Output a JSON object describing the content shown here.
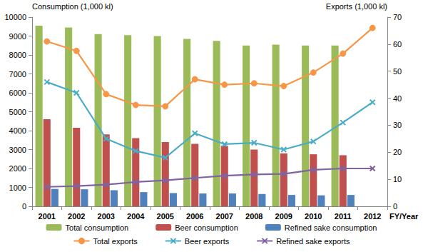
{
  "chart_data": {
    "type": "bar",
    "x_label": "FY/Year",
    "y_label": "Consumption (1,000 kl)",
    "y2_label": "Exports (1,000 kl)",
    "categories": [
      "2001",
      "2002",
      "2003",
      "2004",
      "2005",
      "2006",
      "2007",
      "2008",
      "2009",
      "2010",
      "2011",
      "2012"
    ],
    "ylim": [
      0,
      10000
    ],
    "yticks": [
      0,
      1000,
      2000,
      3000,
      4000,
      5000,
      6000,
      7000,
      8000,
      9000,
      10000
    ],
    "y2lim": [
      0,
      70
    ],
    "y2ticks": [
      0,
      10,
      20,
      30,
      40,
      50,
      60,
      70
    ],
    "grid": false,
    "legend": "bottom",
    "series": [
      {
        "name": "Total consumption",
        "type": "bar",
        "color": "#9bbb59",
        "values": [
          9550,
          9450,
          9100,
          9050,
          9000,
          8850,
          8750,
          8500,
          8550,
          8500,
          8500,
          null
        ]
      },
      {
        "name": "Beer consumption",
        "type": "bar",
        "color": "#c0504d",
        "values": [
          4600,
          4150,
          3800,
          3600,
          3400,
          3300,
          3200,
          3000,
          2800,
          2750,
          2700,
          null
        ]
      },
      {
        "name": "Refined sake consumption",
        "type": "bar",
        "color": "#4f81bd",
        "values": [
          920,
          900,
          850,
          750,
          700,
          680,
          680,
          650,
          600,
          580,
          600,
          null
        ]
      },
      {
        "name": "Total exports",
        "type": "line",
        "axis": "y2",
        "color": "#f79646",
        "marker": "circle",
        "line_style": "solid",
        "values": [
          61,
          57.5,
          41.5,
          37.5,
          37,
          47,
          45,
          45.5,
          44.5,
          49.5,
          56.5,
          66
        ]
      },
      {
        "name": "Beer exports",
        "type": "line",
        "axis": "y2",
        "color": "#4bacc6",
        "marker": "x",
        "line_style": "solid",
        "values": [
          46,
          42,
          25,
          20.5,
          18,
          27,
          23,
          23.5,
          21,
          24,
          31,
          38.5
        ]
      },
      {
        "name": "Refined sake exports",
        "type": "line",
        "axis": "y2",
        "color": "#8064a2",
        "marker": "x",
        "line_style": "solid",
        "values": [
          7.2,
          7.5,
          8,
          9,
          9.6,
          10.5,
          11.3,
          11.8,
          12,
          13.5,
          14,
          14
        ]
      }
    ]
  }
}
